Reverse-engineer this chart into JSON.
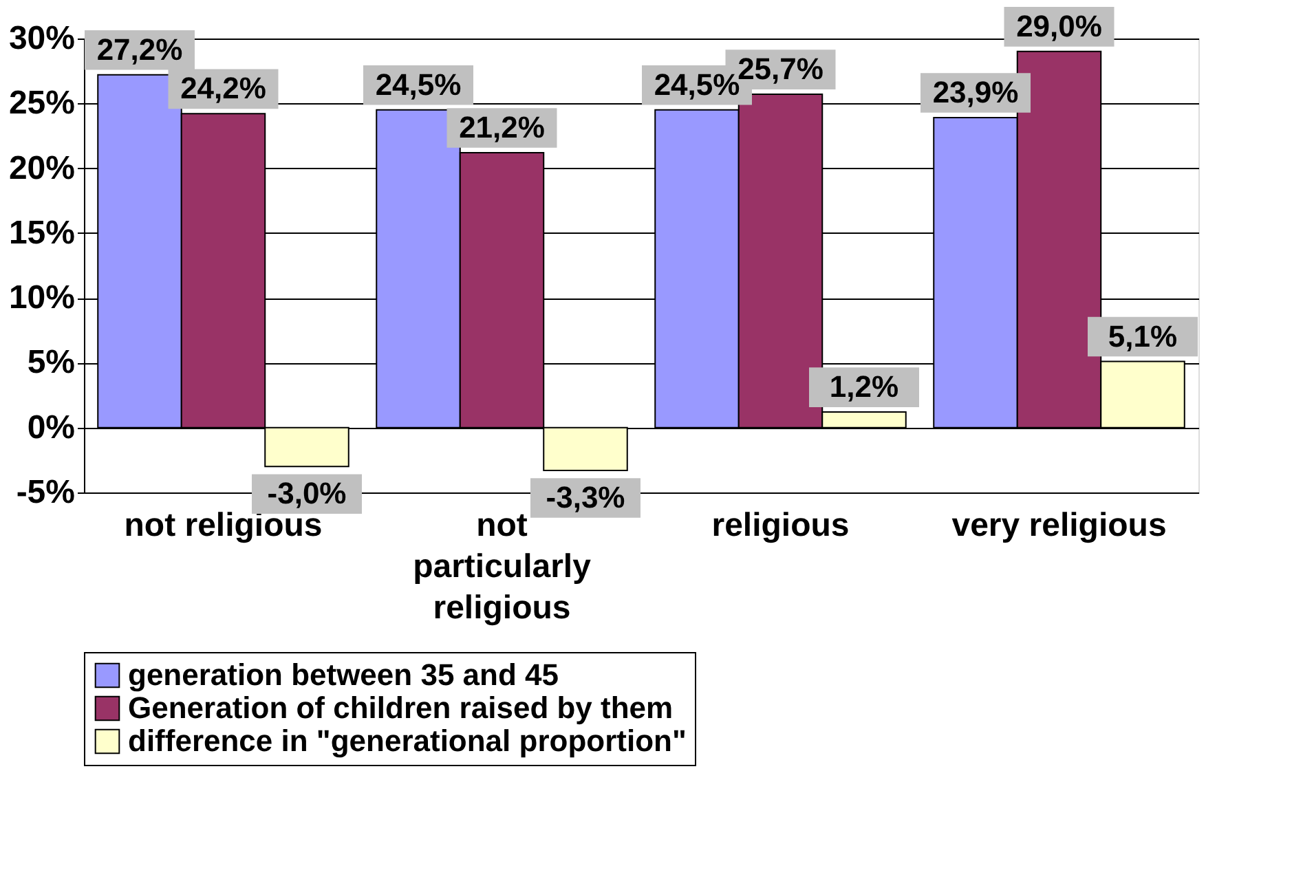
{
  "chart_data": {
    "type": "bar",
    "categories": [
      "not religious",
      "not particularly religious",
      "religious",
      "very religious"
    ],
    "series": [
      {
        "name": "generation between 35 and 45",
        "color": "#9999ff",
        "values": [
          27.2,
          24.5,
          24.5,
          23.9
        ],
        "value_labels": [
          "27,2%",
          "24,5%",
          "24,5%",
          "23,9%"
        ]
      },
      {
        "name": "Generation of children raised by them",
        "color": "#993366",
        "values": [
          24.2,
          21.2,
          25.7,
          29.0
        ],
        "value_labels": [
          "24,2%",
          "21,2%",
          "25,7%",
          "29,0%"
        ]
      },
      {
        "name": "difference in \"generational proportion\"",
        "color": "#ffffcc",
        "values": [
          -3.0,
          -3.3,
          1.2,
          5.1
        ],
        "value_labels": [
          "-3,0%",
          "-3,3%",
          "1,2%",
          "5,1%"
        ]
      }
    ],
    "ylim": [
      -5,
      30
    ],
    "yticks": [
      {
        "value": -5,
        "label": "-5%"
      },
      {
        "value": 0,
        "label": "0%"
      },
      {
        "value": 5,
        "label": "5%"
      },
      {
        "value": 10,
        "label": "10%"
      },
      {
        "value": 15,
        "label": "15%"
      },
      {
        "value": 20,
        "label": "20%"
      },
      {
        "value": 25,
        "label": "25%"
      },
      {
        "value": 30,
        "label": "30%"
      }
    ],
    "grid": "y",
    "legend": "bottom"
  }
}
